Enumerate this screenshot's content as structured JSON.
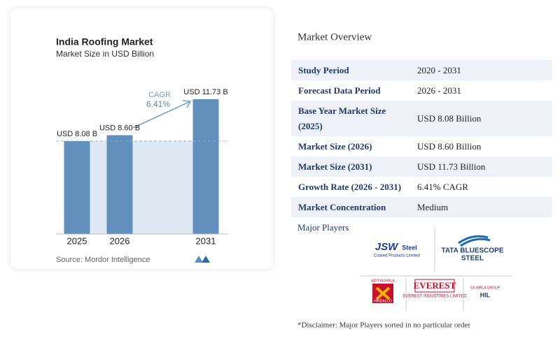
{
  "chart_data": {
    "type": "bar",
    "title": "India Roofing Market",
    "subtitle": "Market Size in USD Billion",
    "categories": [
      "2025",
      "2026",
      "2031"
    ],
    "values": [
      8.08,
      8.6,
      11.73
    ],
    "value_labels": [
      "USD 8.08 B",
      "USD 8.60 B",
      "USD 11.73 B"
    ],
    "color": "#6090bb",
    "annotation": {
      "label": "CAGR",
      "value": "6.41%"
    },
    "source": "Source: Mordor Intelligence"
  },
  "overview": {
    "title": "Market Overview",
    "rows": [
      [
        "Study Period",
        "2020 - 2031"
      ],
      [
        "Forecast Data Period",
        "2026 - 2031"
      ],
      [
        "Base Year Market Size (2025)",
        "USD 8.08 Billion"
      ],
      [
        "Market Size (2026)",
        "USD 8.60 Billion"
      ],
      [
        "Market Size (2031)",
        "USD 11.73 Billion"
      ],
      [
        "Growth Rate (2026 - 2031)",
        "6.41% CAGR"
      ],
      [
        "Market Concentration",
        "Medium"
      ]
    ]
  },
  "players": {
    "title": "Major Players",
    "logos": [
      [
        "JSW",
        "Steel",
        "Coated Products Limited"
      ],
      [
        "TATA BLUESCOPE",
        "STEEL"
      ],
      [
        "ADITYA BIRLA",
        "HINDALCO"
      ],
      [
        "EVEREST",
        "EVEREST INDUSTRIES LIMITED"
      ],
      [
        "CK BIRLA GROUP",
        "HIL"
      ]
    ]
  },
  "disclaimer": "*Disclaimer: Major Players sorted in no particular order"
}
